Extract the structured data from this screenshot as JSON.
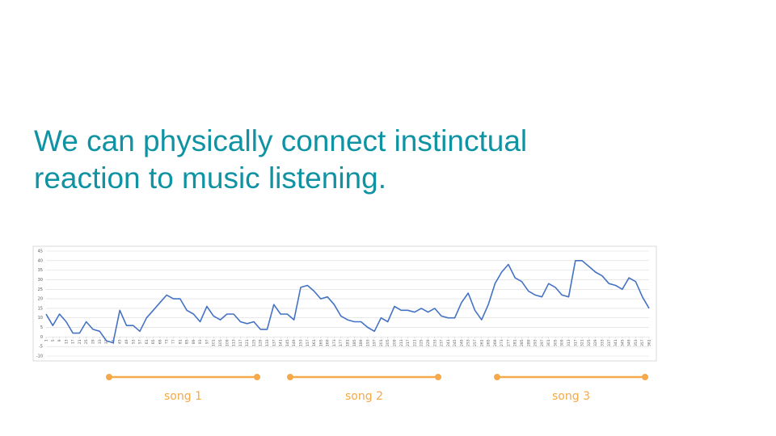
{
  "heading": "We can physically connect instinctual reaction to music listening.",
  "chart_data": {
    "type": "line",
    "color": "#4472c4",
    "x": [
      1,
      5,
      9,
      13,
      17,
      21,
      25,
      29,
      33,
      37,
      41,
      45,
      49,
      53,
      57,
      61,
      65,
      69,
      73,
      77,
      81,
      85,
      89,
      93,
      97,
      101,
      105,
      109,
      113,
      117,
      121,
      125,
      129,
      133,
      137,
      141,
      145,
      149,
      153,
      157,
      161,
      165,
      169,
      173,
      177,
      181,
      185,
      189,
      193,
      197,
      201,
      205,
      209,
      213,
      217,
      221,
      225,
      229,
      233,
      237,
      241,
      245,
      249,
      253,
      257,
      261,
      265,
      269,
      273,
      277,
      281,
      285,
      289,
      293,
      297,
      301,
      305,
      309,
      313,
      317,
      321,
      325,
      329,
      333,
      337,
      341,
      345,
      349,
      353,
      357,
      361
    ],
    "values": [
      12,
      6,
      12,
      8,
      2,
      2,
      8,
      4,
      3,
      -2,
      -3,
      14,
      6,
      6,
      3,
      10,
      14,
      18,
      22,
      20,
      20,
      14,
      12,
      8,
      16,
      11,
      9,
      12,
      12,
      8,
      7,
      8,
      4,
      4,
      17,
      12,
      12,
      9,
      26,
      27,
      24,
      20,
      21,
      17,
      11,
      9,
      8,
      8,
      5,
      3,
      10,
      8,
      16,
      14,
      14,
      13,
      15,
      13,
      15,
      11,
      10,
      10,
      18,
      23,
      14,
      9,
      17,
      28,
      34,
      38,
      31,
      29,
      24,
      22,
      21,
      28,
      26,
      22,
      21,
      40,
      40,
      37,
      34,
      32,
      28,
      27,
      25,
      31,
      29,
      21,
      15
    ],
    "xlim": [
      1,
      361
    ],
    "xticks": [
      1,
      5,
      9,
      13,
      17,
      21,
      25,
      29,
      33,
      37,
      41,
      45,
      49,
      53,
      57,
      61,
      65,
      69,
      73,
      77,
      81,
      85,
      89,
      93,
      97,
      101,
      105,
      109,
      113,
      117,
      121,
      125,
      129,
      133,
      137,
      141,
      145,
      149,
      153,
      157,
      161,
      165,
      169,
      173,
      177,
      181,
      185,
      189,
      193,
      197,
      201,
      205,
      209,
      213,
      217,
      221,
      225,
      229,
      233,
      237,
      241,
      245,
      249,
      253,
      257,
      261,
      265,
      269,
      273,
      277,
      281,
      285,
      289,
      293,
      297,
      301,
      305,
      309,
      313,
      317,
      321,
      325,
      329,
      333,
      337,
      341,
      345,
      349,
      353,
      357,
      361
    ],
    "ylim": [
      -10,
      45
    ],
    "yticks": [
      -10,
      -5,
      0,
      5,
      10,
      15,
      20,
      25,
      30,
      35,
      40,
      45
    ],
    "grid": true
  },
  "annotations": [
    {
      "text": "song 1",
      "color": "#f5a94a"
    },
    {
      "text": "song 2",
      "color": "#f5a94a"
    },
    {
      "text": "song 3",
      "color": "#f5a94a"
    }
  ]
}
